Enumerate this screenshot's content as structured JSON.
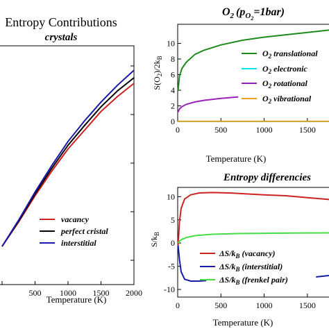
{
  "chart_data": [
    {
      "type": "line",
      "title": "Entropy Contributions",
      "subtitle": "crystals",
      "xlabel": "Temperature (K)",
      "ylabel": "",
      "xlim": [
        0,
        2000
      ],
      "ylim": [
        0,
        1
      ],
      "xticks": [
        "500",
        "1000",
        "1500",
        "2000"
      ],
      "legend": "bottom-center",
      "series": [
        {
          "name": "vacancy",
          "color": "#cc2222",
          "x": [
            0,
            250,
            500,
            750,
            1000,
            1250,
            1500,
            1750,
            2000
          ],
          "y": [
            0.0,
            0.13,
            0.27,
            0.4,
            0.52,
            0.62,
            0.72,
            0.8,
            0.87
          ]
        },
        {
          "name": "perfect cristal",
          "color": "#000000",
          "x": [
            0,
            250,
            500,
            750,
            1000,
            1250,
            1500,
            1750,
            2000
          ],
          "y": [
            0.0,
            0.135,
            0.28,
            0.415,
            0.54,
            0.645,
            0.745,
            0.83,
            0.9
          ]
        },
        {
          "name": "interstitial",
          "color": "#1a1aaa",
          "x": [
            0,
            250,
            500,
            750,
            1000,
            1250,
            1500,
            1750,
            2000
          ],
          "y": [
            0.0,
            0.14,
            0.29,
            0.43,
            0.56,
            0.67,
            0.77,
            0.86,
            0.94
          ]
        }
      ]
    },
    {
      "type": "line",
      "title": "O",
      "title_sub": "2",
      "title_paren": "(p",
      "title_paren_sub": "O",
      "title_paren_subsub": "2",
      "title_tail": "=1bar)",
      "xlabel": "Temperature (K)",
      "ylabel": "S(O",
      "ylabel_sub": "2",
      "ylabel_tail": ")/2k",
      "ylabel_tail_sub": "B",
      "xlim": [
        0,
        1750
      ],
      "ylim": [
        0,
        12
      ],
      "xticks": [
        0,
        500,
        1000,
        1500
      ],
      "yticks": [
        0,
        2,
        4,
        6,
        8,
        10
      ],
      "legend": "right",
      "series": [
        {
          "name": "O",
          "name_sub": "2",
          "name_tail": "translational",
          "color": "#1e8a1e",
          "x": [
            5,
            20,
            50,
            100,
            200,
            300,
            500,
            750,
            1000,
            1250,
            1500,
            1750
          ],
          "y": [
            4.0,
            5.8,
            6.8,
            7.6,
            8.6,
            9.1,
            9.8,
            10.4,
            10.8,
            11.1,
            11.4,
            11.7
          ]
        },
        {
          "name": "O",
          "name_sub": "2",
          "name_tail": "electronic",
          "color": "#00e5e5",
          "x": [
            0,
            1750
          ],
          "y": [
            0.0,
            0.0
          ]
        },
        {
          "name": "O",
          "name_sub": "2",
          "name_tail": "rotational",
          "color": "#9a22b8",
          "x": [
            5,
            20,
            50,
            100,
            200,
            300,
            500,
            700
          ],
          "y": [
            1.2,
            1.6,
            1.9,
            2.2,
            2.5,
            2.7,
            2.95,
            3.15
          ]
        },
        {
          "name": "O",
          "name_sub": "2",
          "name_tail": "vibrational",
          "color": "#e8a020",
          "x": [
            0,
            1750
          ],
          "y": [
            0.02,
            0.02
          ]
        }
      ]
    },
    {
      "type": "line",
      "title": "Entropy differencies",
      "xlabel": "Temperature (K)",
      "ylabel": "S/k",
      "ylabel_sub": "B",
      "xlim": [
        0,
        1750
      ],
      "ylim": [
        -10,
        12
      ],
      "xticks": [
        0,
        500,
        1000,
        1500
      ],
      "yticks": [
        -10,
        -5,
        0,
        5,
        10
      ],
      "legend": "bottom-right",
      "series": [
        {
          "name": "ΔS/k",
          "name_sub": "B",
          "name_tail": "(vacancy)",
          "color": "#cc2222",
          "x": [
            5,
            20,
            40,
            80,
            150,
            250,
            400,
            600,
            800,
            1000,
            1250,
            1500,
            1750
          ],
          "y": [
            -0.5,
            4.5,
            7.5,
            9.5,
            10.4,
            10.8,
            10.9,
            10.8,
            10.6,
            10.4,
            10.2,
            9.8,
            9.4
          ]
        },
        {
          "name": "ΔS/k",
          "name_sub": "B",
          "name_tail": "(interstitial)",
          "color": "#1a1aaa",
          "x": [
            5,
            20,
            40,
            80,
            150,
            250,
            330
          ],
          "y": [
            -0.5,
            -3.5,
            -6.2,
            -7.8,
            -8.2,
            -8.2,
            -8.1
          ]
        },
        {
          "name": "ΔS/k",
          "name_sub": "B",
          "name_tail": "(frenkel pair)",
          "color": "#44dd44",
          "x": [
            5,
            20,
            50,
            100,
            200,
            400,
            700,
            1000,
            1300,
            1750
          ],
          "y": [
            0.0,
            0.4,
            0.8,
            1.2,
            1.6,
            1.9,
            2.05,
            2.1,
            2.15,
            2.2
          ]
        },
        {
          "name": "",
          "color": "#1a1aaa",
          "x": [
            1600,
            1700,
            1750
          ],
          "y": [
            -7.3,
            -7.1,
            -7.0
          ]
        }
      ]
    }
  ]
}
